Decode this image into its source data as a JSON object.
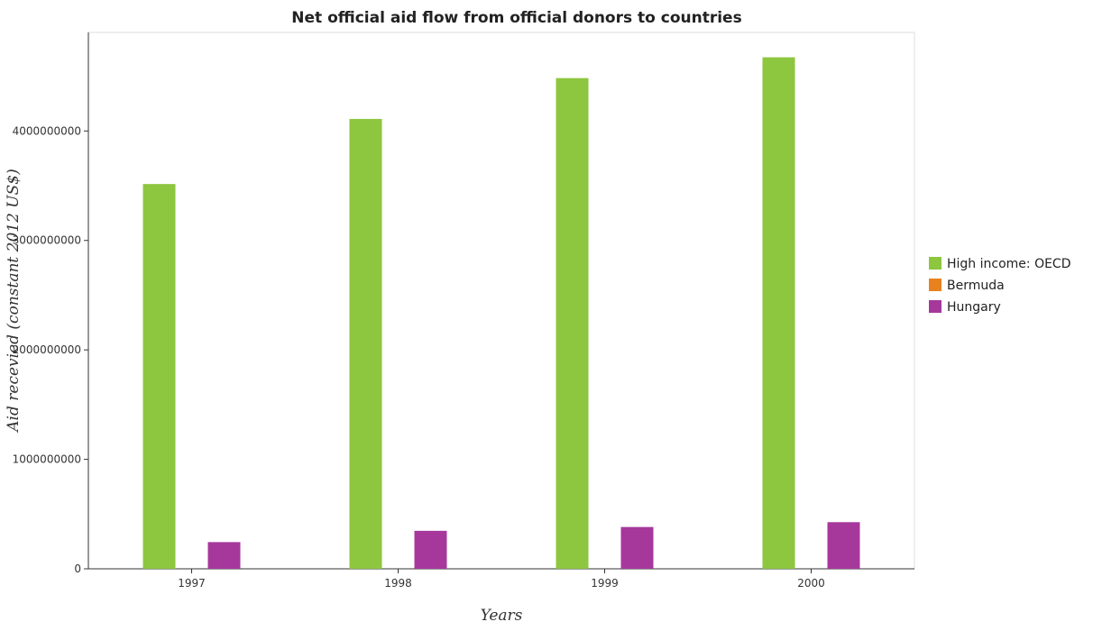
{
  "chart_data": {
    "type": "bar",
    "title": "Net official aid flow from official donors to countries",
    "xlabel": "Years",
    "ylabel": "Aid recevied (constant 2012 US$)",
    "categories": [
      "1997",
      "1998",
      "1999",
      "2000"
    ],
    "series": [
      {
        "name": "High income: OECD",
        "color": "#8dc63f",
        "values": [
          3515000000,
          4110000000,
          4483000000,
          4673000000
        ]
      },
      {
        "name": "Bermuda",
        "color": "#e8821e",
        "values": [
          0,
          0,
          0,
          0
        ]
      },
      {
        "name": "Hungary",
        "color": "#a6389b",
        "values": [
          244000000,
          347000000,
          382000000,
          426000000
        ]
      }
    ],
    "ylim": [
      0,
      4900000000
    ],
    "yticks": [
      0,
      1000000000,
      2000000000,
      3000000000,
      4000000000
    ],
    "ytick_labels": [
      "0",
      "1000000000",
      "2000000000",
      "3000000000",
      "4000000000"
    ],
    "grid": false,
    "legend_position": "right"
  }
}
